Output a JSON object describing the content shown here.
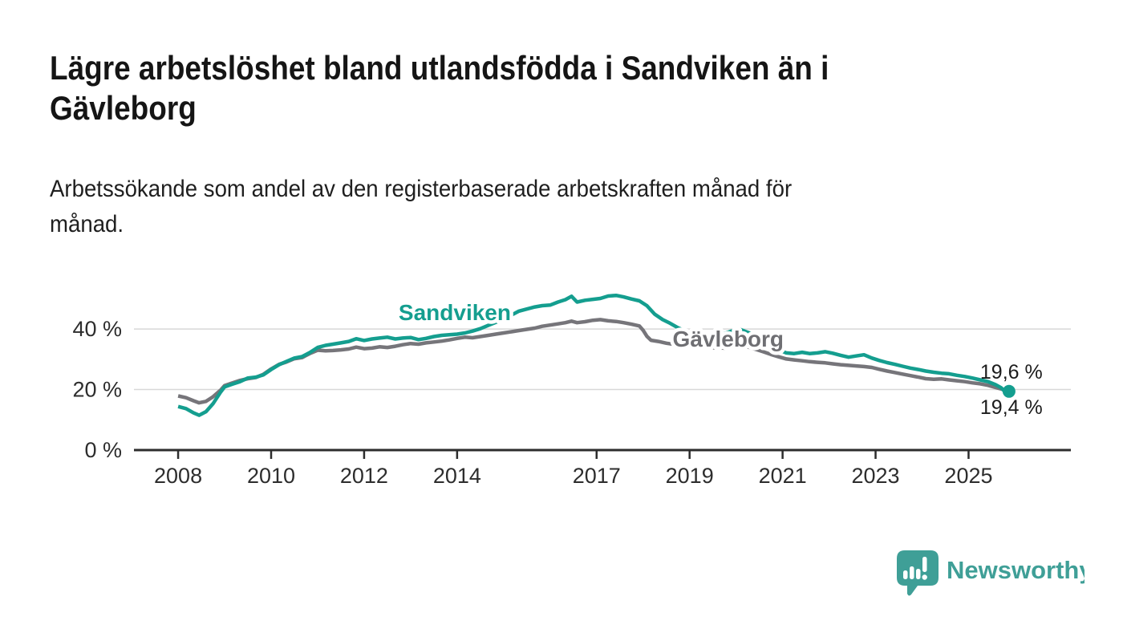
{
  "header": {
    "title_lines": [
      "Lägre arbetslöshet bland utlandsfödda i Sandviken än i",
      "Gävleborg"
    ],
    "subtitle_lines": [
      "Arbetssökande som andel av den registerbaserade arbetskraften månad för",
      "månad."
    ]
  },
  "chart_data": {
    "type": "line",
    "unit": "%",
    "grid": true,
    "grid_color": "#d8d8d8",
    "axis_color": "#2d2d2d",
    "x_axis": {
      "range": [
        2007.05,
        2027.2
      ],
      "ticks": [
        2008,
        2010,
        2012,
        2014,
        2017,
        2019,
        2021,
        2023,
        2025
      ]
    },
    "y_axis": {
      "range": [
        0,
        55
      ],
      "ticks": [
        0,
        20,
        40
      ],
      "tick_labels": [
        "0 %",
        "20 %",
        "40 %"
      ]
    },
    "series": [
      {
        "name": "Sandviken",
        "color": "#149e8f",
        "label_color": "#149e8f",
        "label_pos": {
          "x": 2013.95,
          "y": 42.9
        },
        "end_dot": true,
        "end_label": "19,4 %",
        "end_value": 19.4,
        "points": [
          [
            2008.0,
            14.4
          ],
          [
            2008.17,
            13.7
          ],
          [
            2008.33,
            12.3
          ],
          [
            2008.45,
            11.5
          ],
          [
            2008.6,
            12.7
          ],
          [
            2008.75,
            15.3
          ],
          [
            2008.92,
            19.3
          ],
          [
            2009.0,
            20.9
          ],
          [
            2009.17,
            21.8
          ],
          [
            2009.33,
            22.6
          ],
          [
            2009.5,
            23.8
          ],
          [
            2009.67,
            24.1
          ],
          [
            2009.83,
            24.8
          ],
          [
            2010.0,
            26.6
          ],
          [
            2010.17,
            28.2
          ],
          [
            2010.33,
            29.3
          ],
          [
            2010.5,
            30.4
          ],
          [
            2010.67,
            30.9
          ],
          [
            2010.83,
            32.2
          ],
          [
            2011.0,
            33.9
          ],
          [
            2011.17,
            34.6
          ],
          [
            2011.33,
            35.0
          ],
          [
            2011.5,
            35.4
          ],
          [
            2011.67,
            35.9
          ],
          [
            2011.83,
            36.8
          ],
          [
            2012.0,
            36.2
          ],
          [
            2012.17,
            36.7
          ],
          [
            2012.33,
            37.0
          ],
          [
            2012.5,
            37.3
          ],
          [
            2012.67,
            36.7
          ],
          [
            2012.83,
            37.0
          ],
          [
            2013.0,
            37.2
          ],
          [
            2013.17,
            36.5
          ],
          [
            2013.33,
            36.9
          ],
          [
            2013.5,
            37.5
          ],
          [
            2013.67,
            37.9
          ],
          [
            2013.83,
            38.1
          ],
          [
            2014.0,
            38.3
          ],
          [
            2014.17,
            38.7
          ],
          [
            2014.33,
            39.3
          ],
          [
            2014.5,
            40.1
          ],
          [
            2014.67,
            41.2
          ],
          [
            2014.83,
            42.2
          ],
          [
            2015.0,
            43.2
          ],
          [
            2015.17,
            44.6
          ],
          [
            2015.33,
            45.9
          ],
          [
            2015.5,
            46.6
          ],
          [
            2015.67,
            47.3
          ],
          [
            2015.83,
            47.7
          ],
          [
            2016.0,
            47.9
          ],
          [
            2016.17,
            48.9
          ],
          [
            2016.33,
            49.7
          ],
          [
            2016.46,
            50.8
          ],
          [
            2016.58,
            48.9
          ],
          [
            2016.75,
            49.5
          ],
          [
            2016.92,
            49.8
          ],
          [
            2017.08,
            50.1
          ],
          [
            2017.25,
            50.9
          ],
          [
            2017.42,
            51.1
          ],
          [
            2017.58,
            50.6
          ],
          [
            2017.75,
            49.9
          ],
          [
            2017.92,
            49.3
          ],
          [
            2018.08,
            47.7
          ],
          [
            2018.25,
            44.9
          ],
          [
            2018.42,
            43.1
          ],
          [
            2018.58,
            41.9
          ],
          [
            2018.75,
            40.4
          ],
          [
            2018.92,
            39.2
          ],
          [
            2019.08,
            38.4
          ],
          [
            2019.25,
            37.7
          ],
          [
            2019.38,
            36.8
          ],
          [
            2019.5,
            38.3
          ],
          [
            2019.63,
            38.0
          ],
          [
            2019.75,
            38.5
          ],
          [
            2019.92,
            39.4
          ],
          [
            2020.08,
            39.9
          ],
          [
            2020.25,
            38.9
          ],
          [
            2020.42,
            37.9
          ],
          [
            2020.58,
            36.2
          ],
          [
            2020.75,
            34.6
          ],
          [
            2020.92,
            33.1
          ],
          [
            2021.08,
            32.1
          ],
          [
            2021.25,
            31.9
          ],
          [
            2021.42,
            32.3
          ],
          [
            2021.58,
            31.9
          ],
          [
            2021.75,
            32.1
          ],
          [
            2021.92,
            32.5
          ],
          [
            2022.08,
            32.0
          ],
          [
            2022.25,
            31.3
          ],
          [
            2022.42,
            30.7
          ],
          [
            2022.58,
            31.1
          ],
          [
            2022.75,
            31.5
          ],
          [
            2022.92,
            30.4
          ],
          [
            2023.08,
            29.6
          ],
          [
            2023.25,
            28.9
          ],
          [
            2023.42,
            28.3
          ],
          [
            2023.58,
            27.7
          ],
          [
            2023.75,
            27.1
          ],
          [
            2023.92,
            26.6
          ],
          [
            2024.08,
            26.1
          ],
          [
            2024.25,
            25.7
          ],
          [
            2024.42,
            25.4
          ],
          [
            2024.58,
            25.2
          ],
          [
            2024.75,
            24.7
          ],
          [
            2024.92,
            24.3
          ],
          [
            2025.08,
            23.8
          ],
          [
            2025.25,
            23.2
          ],
          [
            2025.42,
            22.6
          ],
          [
            2025.58,
            21.6
          ],
          [
            2025.7,
            20.6
          ],
          [
            2025.8,
            19.0
          ],
          [
            2025.87,
            19.4
          ]
        ]
      },
      {
        "name": "Gävleborg",
        "color": "#76757a",
        "label_color": "#6f6f73",
        "label_pos": {
          "x": 2019.83,
          "y": 34.2
        },
        "end_dot": false,
        "end_label": "19,6 %",
        "end_value": 19.6,
        "points": [
          [
            2008.0,
            17.9
          ],
          [
            2008.17,
            17.3
          ],
          [
            2008.33,
            16.3
          ],
          [
            2008.45,
            15.6
          ],
          [
            2008.6,
            16.1
          ],
          [
            2008.75,
            17.6
          ],
          [
            2008.92,
            19.9
          ],
          [
            2009.0,
            21.3
          ],
          [
            2009.17,
            22.2
          ],
          [
            2009.33,
            23.0
          ],
          [
            2009.5,
            23.6
          ],
          [
            2009.67,
            24.0
          ],
          [
            2009.83,
            25.0
          ],
          [
            2010.0,
            26.8
          ],
          [
            2010.17,
            28.3
          ],
          [
            2010.33,
            29.1
          ],
          [
            2010.5,
            30.2
          ],
          [
            2010.67,
            30.6
          ],
          [
            2010.83,
            31.9
          ],
          [
            2011.0,
            33.0
          ],
          [
            2011.17,
            32.8
          ],
          [
            2011.33,
            32.9
          ],
          [
            2011.5,
            33.1
          ],
          [
            2011.67,
            33.4
          ],
          [
            2011.83,
            34.0
          ],
          [
            2012.0,
            33.5
          ],
          [
            2012.17,
            33.7
          ],
          [
            2012.33,
            34.1
          ],
          [
            2012.5,
            33.9
          ],
          [
            2012.67,
            34.3
          ],
          [
            2012.83,
            34.8
          ],
          [
            2013.0,
            35.2
          ],
          [
            2013.17,
            35.0
          ],
          [
            2013.33,
            35.4
          ],
          [
            2013.5,
            35.7
          ],
          [
            2013.67,
            36.0
          ],
          [
            2013.83,
            36.4
          ],
          [
            2014.0,
            36.9
          ],
          [
            2014.17,
            37.3
          ],
          [
            2014.33,
            37.1
          ],
          [
            2014.5,
            37.5
          ],
          [
            2014.67,
            37.9
          ],
          [
            2014.83,
            38.3
          ],
          [
            2015.0,
            38.7
          ],
          [
            2015.17,
            39.1
          ],
          [
            2015.33,
            39.5
          ],
          [
            2015.5,
            39.9
          ],
          [
            2015.67,
            40.3
          ],
          [
            2015.83,
            40.9
          ],
          [
            2016.0,
            41.3
          ],
          [
            2016.17,
            41.7
          ],
          [
            2016.33,
            42.1
          ],
          [
            2016.46,
            42.6
          ],
          [
            2016.58,
            42.1
          ],
          [
            2016.75,
            42.4
          ],
          [
            2016.92,
            42.9
          ],
          [
            2017.08,
            43.1
          ],
          [
            2017.25,
            42.7
          ],
          [
            2017.42,
            42.5
          ],
          [
            2017.58,
            42.1
          ],
          [
            2017.75,
            41.6
          ],
          [
            2017.92,
            41.0
          ],
          [
            2018.0,
            39.6
          ],
          [
            2018.08,
            37.6
          ],
          [
            2018.17,
            36.3
          ],
          [
            2018.33,
            35.9
          ],
          [
            2018.5,
            35.3
          ],
          [
            2018.67,
            34.9
          ],
          [
            2018.83,
            34.5
          ],
          [
            2019.0,
            34.3
          ],
          [
            2019.17,
            34.1
          ],
          [
            2019.33,
            33.9
          ],
          [
            2019.5,
            33.8
          ],
          [
            2019.75,
            33.7
          ],
          [
            2019.92,
            34.0
          ],
          [
            2020.08,
            34.5
          ],
          [
            2020.25,
            34.1
          ],
          [
            2020.42,
            33.3
          ],
          [
            2020.58,
            32.5
          ],
          [
            2020.75,
            31.6
          ],
          [
            2020.92,
            30.8
          ],
          [
            2021.08,
            30.1
          ],
          [
            2021.25,
            29.8
          ],
          [
            2021.42,
            29.5
          ],
          [
            2021.58,
            29.2
          ],
          [
            2021.75,
            29.0
          ],
          [
            2021.92,
            28.8
          ],
          [
            2022.08,
            28.5
          ],
          [
            2022.25,
            28.2
          ],
          [
            2022.42,
            28.0
          ],
          [
            2022.58,
            27.8
          ],
          [
            2022.75,
            27.6
          ],
          [
            2022.92,
            27.3
          ],
          [
            2023.08,
            26.7
          ],
          [
            2023.25,
            26.1
          ],
          [
            2023.42,
            25.6
          ],
          [
            2023.58,
            25.1
          ],
          [
            2023.75,
            24.6
          ],
          [
            2023.92,
            24.1
          ],
          [
            2024.08,
            23.6
          ],
          [
            2024.25,
            23.4
          ],
          [
            2024.42,
            23.5
          ],
          [
            2024.58,
            23.2
          ],
          [
            2024.75,
            22.9
          ],
          [
            2024.92,
            22.6
          ],
          [
            2025.08,
            22.2
          ],
          [
            2025.25,
            21.9
          ],
          [
            2025.42,
            21.4
          ],
          [
            2025.58,
            20.7
          ],
          [
            2025.7,
            20.2
          ],
          [
            2025.8,
            19.8
          ],
          [
            2025.87,
            19.6
          ]
        ]
      }
    ]
  },
  "footer": {
    "brand": "Newsworthy",
    "brand_color": "#3f9f97"
  }
}
